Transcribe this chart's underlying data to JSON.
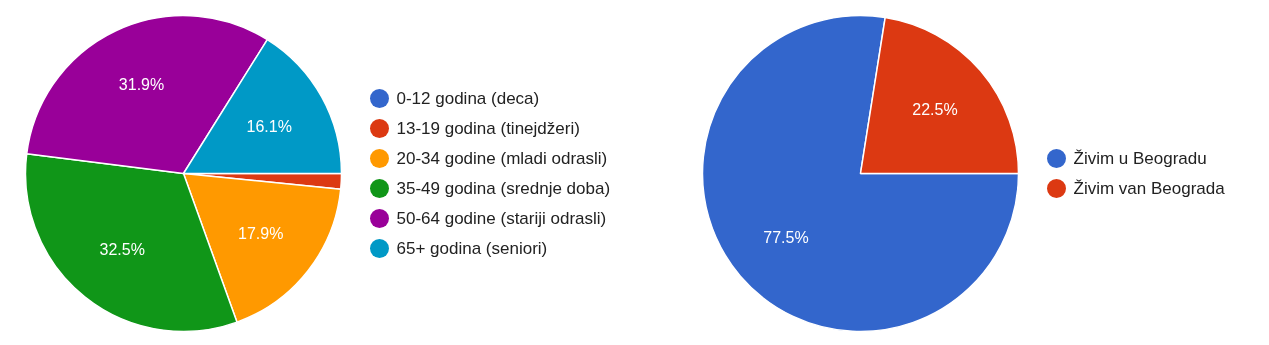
{
  "chart_data": [
    {
      "type": "pie",
      "categories": [
        "0-12 godina (deca)",
        "13-19 godina (tinejdžeri)",
        "20-34 godine (mladi odrasli)",
        "35-49 godina (srednje doba)",
        "50-64 godine (stariji odrasli)",
        "65+ godina (seniori)"
      ],
      "values": [
        0,
        1.6,
        17.9,
        32.5,
        31.9,
        16.1
      ],
      "colors": [
        "#3366cc",
        "#dc3912",
        "#ff9900",
        "#109618",
        "#990099",
        "#0099c6"
      ],
      "value_labels": [
        null,
        null,
        "17.9%",
        "32.5%",
        "31.9%",
        "16.1%"
      ],
      "legend": "right"
    },
    {
      "type": "pie",
      "categories": [
        "Živim u Beogradu",
        "Živim van Beograda"
      ],
      "values": [
        77.5,
        22.5
      ],
      "colors": [
        "#3366cc",
        "#dc3912"
      ],
      "value_labels": [
        "77.5%",
        "22.5%"
      ],
      "legend": "right"
    }
  ]
}
